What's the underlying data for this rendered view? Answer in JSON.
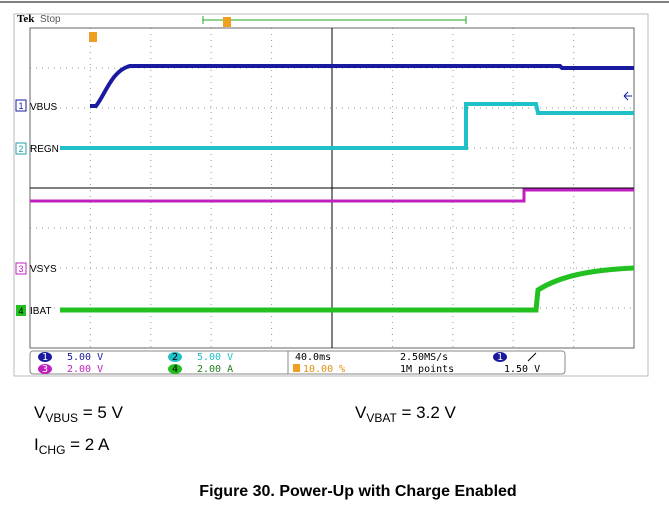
{
  "header": {
    "brand": "Tek",
    "status": "Stop"
  },
  "channels": [
    {
      "number": "1",
      "label": "VBUS",
      "scale": "5.00 V"
    },
    {
      "number": "2",
      "label": "REGN",
      "scale": "5.00 V"
    },
    {
      "number": "3",
      "label": "VSYS",
      "scale": "2.00 V"
    },
    {
      "number": "4",
      "label": "IBAT",
      "scale": "2.00 A"
    }
  ],
  "acquisition": {
    "timebase": "40.0ms",
    "sample_rate": "2.50MS/s",
    "trigger_position": "10.00 %",
    "record_length": "1M points",
    "trigger_channel": "1",
    "trigger_level": "1.50 V"
  },
  "notes": [
    {
      "symbol": "V",
      "subscript": "VBUS",
      "text": " = 5 V"
    },
    {
      "symbol": "V",
      "subscript": "VBAT",
      "text": " = 3.2 V"
    },
    {
      "symbol": "I",
      "subscript": "CHG",
      "text": " = 2 A"
    }
  ],
  "caption": "Figure 30. Power-Up with Charge Enabled"
}
